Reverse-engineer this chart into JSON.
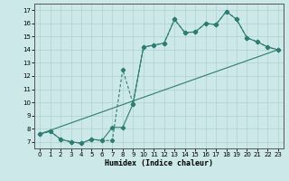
{
  "xlabel": "Humidex (Indice chaleur)",
  "background_color": "#cce8e8",
  "grid_color": "#b0d0d0",
  "line_color": "#2e7d72",
  "xlim": [
    -0.5,
    23.5
  ],
  "ylim": [
    6.5,
    17.5
  ],
  "xticks": [
    0,
    1,
    2,
    3,
    4,
    5,
    6,
    7,
    8,
    9,
    10,
    11,
    12,
    13,
    14,
    15,
    16,
    17,
    18,
    19,
    20,
    21,
    22,
    23
  ],
  "yticks": [
    7,
    8,
    9,
    10,
    11,
    12,
    13,
    14,
    15,
    16,
    17
  ],
  "line1_x": [
    0,
    1,
    2,
    3,
    4,
    5,
    6,
    7,
    8,
    9,
    10,
    11,
    12,
    13,
    14,
    15,
    16,
    17,
    18,
    19,
    20,
    21,
    22,
    23
  ],
  "line1_y": [
    7.6,
    7.8,
    7.2,
    7.0,
    6.9,
    7.2,
    7.1,
    8.1,
    8.1,
    9.9,
    14.2,
    14.35,
    14.5,
    16.3,
    15.3,
    15.35,
    16.0,
    15.9,
    16.9,
    16.3,
    14.9,
    14.6,
    14.2,
    14.0
  ],
  "line2_x": [
    0,
    1,
    2,
    3,
    4,
    5,
    6,
    7,
    8,
    9,
    10,
    11,
    12,
    13,
    14,
    15,
    16,
    17,
    18,
    19,
    20,
    21,
    22,
    23
  ],
  "line2_y": [
    7.6,
    7.8,
    7.2,
    7.0,
    6.9,
    7.2,
    7.1,
    7.1,
    12.5,
    9.9,
    14.2,
    14.35,
    14.5,
    16.3,
    15.3,
    15.35,
    16.0,
    15.9,
    16.9,
    16.3,
    14.9,
    14.6,
    14.2,
    14.0
  ],
  "line3_x": [
    0,
    23
  ],
  "line3_y": [
    7.6,
    14.0
  ]
}
